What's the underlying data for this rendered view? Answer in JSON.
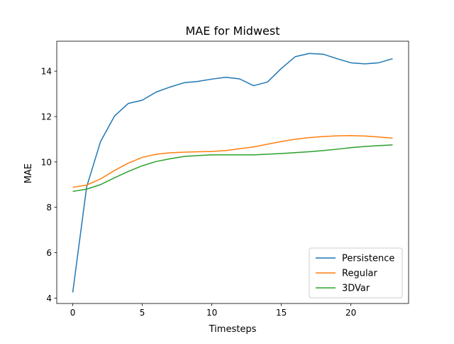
{
  "chart_data": {
    "type": "line",
    "title": "MAE for Midwest",
    "xlabel": "Timesteps",
    "ylabel": "MAE",
    "xlim": [
      -1.15,
      24.15
    ],
    "ylim": [
      3.76,
      15.32
    ],
    "xticks": [
      0,
      5,
      10,
      15,
      20
    ],
    "yticks": [
      4,
      6,
      8,
      10,
      12,
      14
    ],
    "grid": false,
    "legend_position": "lower-right",
    "x": [
      0,
      1,
      2,
      3,
      4,
      5,
      6,
      7,
      8,
      9,
      10,
      11,
      12,
      13,
      14,
      15,
      16,
      17,
      18,
      19,
      20,
      21,
      22,
      23
    ],
    "series": [
      {
        "name": "Persistence",
        "color": "#1f77b4",
        "values": [
          4.25,
          8.9,
          10.9,
          12.02,
          12.58,
          12.72,
          13.08,
          13.3,
          13.49,
          13.55,
          13.65,
          13.73,
          13.66,
          13.36,
          13.52,
          14.12,
          14.64,
          14.78,
          14.75,
          14.55,
          14.37,
          14.32,
          14.37,
          14.55
        ]
      },
      {
        "name": "Regular",
        "color": "#ff7f0e",
        "values": [
          8.88,
          8.98,
          9.25,
          9.62,
          9.95,
          10.2,
          10.34,
          10.4,
          10.43,
          10.45,
          10.46,
          10.5,
          10.58,
          10.66,
          10.78,
          10.9,
          11.0,
          11.07,
          11.12,
          11.15,
          11.16,
          11.14,
          11.1,
          11.05
        ]
      },
      {
        "name": "3DVar",
        "color": "#2ca02c",
        "values": [
          8.7,
          8.8,
          9.0,
          9.3,
          9.58,
          9.83,
          10.02,
          10.14,
          10.24,
          10.28,
          10.31,
          10.31,
          10.31,
          10.31,
          10.34,
          10.37,
          10.41,
          10.45,
          10.5,
          10.56,
          10.63,
          10.68,
          10.72,
          10.75
        ]
      }
    ]
  }
}
